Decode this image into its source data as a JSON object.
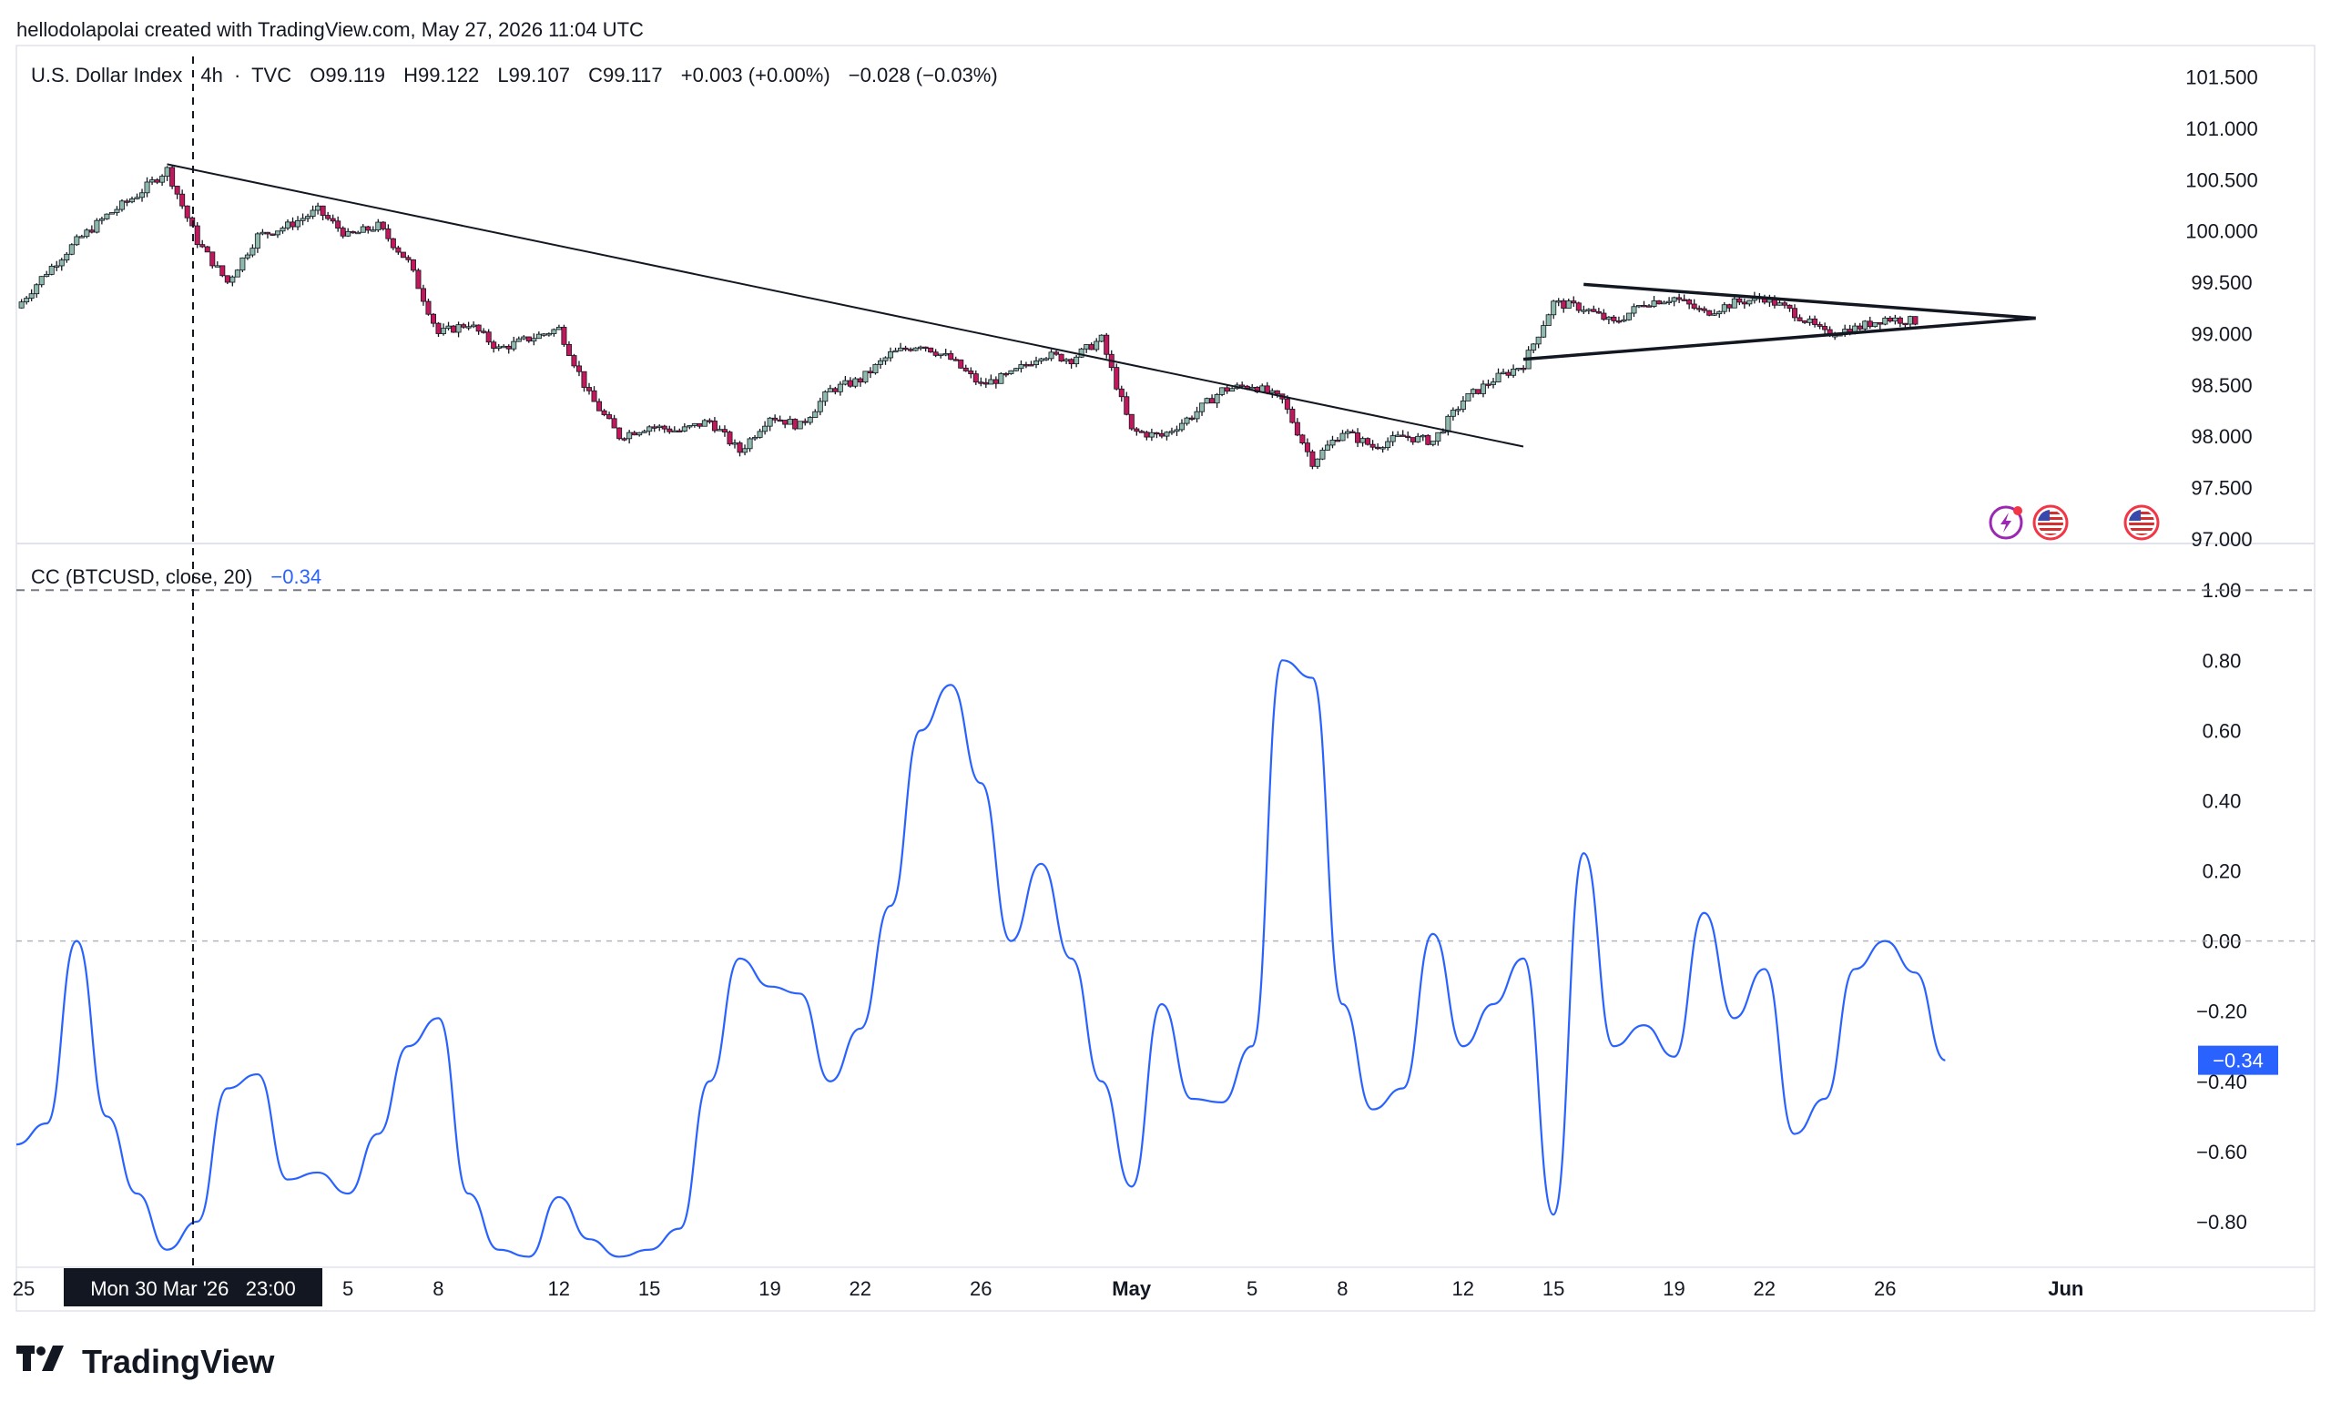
{
  "attribution": "hellodolapolai created with TradingView.com, May 27, 2026 11:04 UTC",
  "brand": "TradingView",
  "colors": {
    "up_candle": "#8fb9aa",
    "down_candle": "#c2185b",
    "wick": "#131722",
    "indicator_line": "#2962ff",
    "crosshair_tag_bg": "#131722",
    "price_tag_bg": "#2962ff"
  },
  "icons": [
    "lightning-event-icon",
    "us-flag-event-icon",
    "us-flag-event-icon-2"
  ],
  "price_pane": {
    "symbol": "U.S. Dollar Index",
    "interval": "4h",
    "exchange": "TVC",
    "ohlc": {
      "open_label": "O",
      "open": "99.119",
      "high_label": "H",
      "high": "99.122",
      "low_label": "L",
      "low": "99.107",
      "close_label": "C",
      "close": "99.117",
      "change": "+0.003 (+0.00%)",
      "change2": "−0.028 (−0.03%)"
    },
    "y_ticks": [
      "101.500",
      "101.000",
      "100.500",
      "100.000",
      "99.500",
      "99.000",
      "98.500",
      "98.000",
      "97.500",
      "97.000"
    ]
  },
  "indicator_pane": {
    "name": "CC (BTCUSD, close, 20)",
    "value": "−0.34",
    "y_ticks": [
      "1.00",
      "0.80",
      "0.60",
      "0.40",
      "0.20",
      "0.00",
      "−0.20",
      "−0.40",
      "−0.60",
      "−0.80"
    ],
    "last_value_tag": "−0.34"
  },
  "x_axis": {
    "labels": [
      "25",
      "5",
      "8",
      "12",
      "15",
      "19",
      "22",
      "26",
      "May",
      "5",
      "8",
      "12",
      "15",
      "19",
      "22",
      "26",
      "Jun"
    ],
    "crosshair_label": "Mon 30 Mar '26   23:00"
  },
  "chart_data": [
    {
      "type": "candlestick",
      "title": "U.S. Dollar Index · 4h · TVC",
      "ylim": [
        97.0,
        101.7
      ],
      "x_range": [
        "Mar 25",
        "Jun 1"
      ],
      "trendlines": [
        {
          "name": "descending",
          "from": [
            "Mar 30",
            100.65
          ],
          "to": [
            "May 14",
            97.9
          ]
        },
        {
          "name": "triangle-upper",
          "from": [
            "May 16",
            99.48
          ],
          "to": [
            "May 31",
            99.15
          ]
        },
        {
          "name": "triangle-lower",
          "from": [
            "May 14",
            98.75
          ],
          "to": [
            "May 31",
            99.15
          ]
        }
      ],
      "close_path": [
        [
          "Mar 25",
          99.25
        ],
        [
          "Mar 26",
          99.6
        ],
        [
          "Mar 27",
          99.9
        ],
        [
          "Mar 28",
          100.15
        ],
        [
          "Mar 29",
          100.35
        ],
        [
          "Mar 30",
          100.6
        ],
        [
          "Mar 31",
          99.9
        ],
        [
          "Apr 1",
          99.5
        ],
        [
          "Apr 2",
          99.95
        ],
        [
          "Apr 3",
          100.05
        ],
        [
          "Apr 4",
          100.2
        ],
        [
          "Apr 5",
          99.95
        ],
        [
          "Apr 6",
          100.05
        ],
        [
          "Apr 7",
          99.7
        ],
        [
          "Apr 8",
          99.0
        ],
        [
          "Apr 9",
          99.1
        ],
        [
          "Apr 10",
          98.85
        ],
        [
          "Apr 11",
          98.95
        ],
        [
          "Apr 12",
          99.05
        ],
        [
          "Apr 13",
          98.4
        ],
        [
          "Apr 14",
          98.0
        ],
        [
          "Apr 15",
          98.1
        ],
        [
          "Apr 16",
          98.05
        ],
        [
          "Apr 17",
          98.15
        ],
        [
          "Apr 18",
          97.85
        ],
        [
          "Apr 19",
          98.2
        ],
        [
          "Apr 20",
          98.1
        ],
        [
          "Apr 21",
          98.45
        ],
        [
          "Apr 22",
          98.55
        ],
        [
          "Apr 23",
          98.8
        ],
        [
          "Apr 24",
          98.9
        ],
        [
          "Apr 25",
          98.75
        ],
        [
          "Apr 26",
          98.5
        ],
        [
          "Apr 27",
          98.6
        ],
        [
          "Apr 28",
          98.8
        ],
        [
          "Apr 29",
          98.75
        ],
        [
          "Apr 30",
          98.95
        ],
        [
          "May 1",
          98.05
        ],
        [
          "May 2",
          98.0
        ],
        [
          "May 3",
          98.2
        ],
        [
          "May 4",
          98.45
        ],
        [
          "May 5",
          98.5
        ],
        [
          "May 6",
          98.35
        ],
        [
          "May 7",
          97.75
        ],
        [
          "May 8",
          98.05
        ],
        [
          "May 9",
          97.9
        ],
        [
          "May 10",
          98.0
        ],
        [
          "May 11",
          97.95
        ],
        [
          "May 12",
          98.35
        ],
        [
          "May 13",
          98.55
        ],
        [
          "May 14",
          98.7
        ],
        [
          "May 15",
          99.3
        ],
        [
          "May 16",
          99.25
        ],
        [
          "May 17",
          99.1
        ],
        [
          "May 18",
          99.3
        ],
        [
          "May 19",
          99.35
        ],
        [
          "May 20",
          99.2
        ],
        [
          "May 21",
          99.3
        ],
        [
          "May 22",
          99.35
        ],
        [
          "May 23",
          99.2
        ],
        [
          "May 24",
          99.0
        ],
        [
          "May 25",
          99.05
        ],
        [
          "May 26",
          99.15
        ],
        [
          "May 27",
          99.12
        ]
      ]
    },
    {
      "type": "line",
      "title": "CC (BTCUSD, close, 20)",
      "ylim": [
        -0.93,
        1.12
      ],
      "reference_lines": [
        1.0,
        0.0
      ],
      "series": [
        {
          "name": "CC (BTCUSD, close, 20)",
          "points": [
            [
              "Mar 25",
              -0.58
            ],
            [
              "Mar 26",
              -0.52
            ],
            [
              "Mar 27",
              0.0
            ],
            [
              "Mar 28",
              -0.5
            ],
            [
              "Mar 29",
              -0.72
            ],
            [
              "Mar 30",
              -0.88
            ],
            [
              "Mar 31",
              -0.8
            ],
            [
              "Apr 1",
              -0.42
            ],
            [
              "Apr 2",
              -0.38
            ],
            [
              "Apr 3",
              -0.68
            ],
            [
              "Apr 4",
              -0.66
            ],
            [
              "Apr 5",
              -0.72
            ],
            [
              "Apr 6",
              -0.55
            ],
            [
              "Apr 7",
              -0.3
            ],
            [
              "Apr 8",
              -0.22
            ],
            [
              "Apr 9",
              -0.72
            ],
            [
              "Apr 10",
              -0.88
            ],
            [
              "Apr 11",
              -0.9
            ],
            [
              "Apr 12",
              -0.73
            ],
            [
              "Apr 13",
              -0.85
            ],
            [
              "Apr 14",
              -0.9
            ],
            [
              "Apr 15",
              -0.88
            ],
            [
              "Apr 16",
              -0.82
            ],
            [
              "Apr 17",
              -0.4
            ],
            [
              "Apr 18",
              -0.05
            ],
            [
              "Apr 19",
              -0.13
            ],
            [
              "Apr 20",
              -0.15
            ],
            [
              "Apr 21",
              -0.4
            ],
            [
              "Apr 22",
              -0.25
            ],
            [
              "Apr 23",
              0.1
            ],
            [
              "Apr 24",
              0.6
            ],
            [
              "Apr 25",
              0.73
            ],
            [
              "Apr 26",
              0.45
            ],
            [
              "Apr 27",
              0.0
            ],
            [
              "Apr 28",
              0.22
            ],
            [
              "Apr 29",
              -0.05
            ],
            [
              "Apr 30",
              -0.4
            ],
            [
              "May 1",
              -0.7
            ],
            [
              "May 2",
              -0.18
            ],
            [
              "May 3",
              -0.45
            ],
            [
              "May 4",
              -0.46
            ],
            [
              "May 5",
              -0.3
            ],
            [
              "May 6",
              0.8
            ],
            [
              "May 7",
              0.75
            ],
            [
              "May 8",
              -0.18
            ],
            [
              "May 9",
              -0.48
            ],
            [
              "May 10",
              -0.42
            ],
            [
              "May 11",
              0.02
            ],
            [
              "May 12",
              -0.3
            ],
            [
              "May 13",
              -0.18
            ],
            [
              "May 14",
              -0.05
            ],
            [
              "May 15",
              -0.78
            ],
            [
              "May 16",
              0.25
            ],
            [
              "May 17",
              -0.3
            ],
            [
              "May 18",
              -0.24
            ],
            [
              "May 19",
              -0.33
            ],
            [
              "May 20",
              0.08
            ],
            [
              "May 21",
              -0.22
            ],
            [
              "May 22",
              -0.08
            ],
            [
              "May 23",
              -0.55
            ],
            [
              "May 24",
              -0.45
            ],
            [
              "May 25",
              -0.08
            ],
            [
              "May 26",
              0.0
            ],
            [
              "May 27",
              -0.09
            ],
            [
              "May 28",
              -0.34
            ]
          ]
        }
      ]
    }
  ]
}
